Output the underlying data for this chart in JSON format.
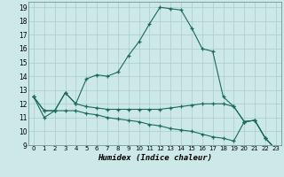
{
  "bg_color": "#cce8e8",
  "grid_color": "#aacccc",
  "line_color": "#1a6b5a",
  "xlabel": "Humidex (Indice chaleur)",
  "xlim": [
    -0.5,
    23.5
  ],
  "ylim": [
    9,
    19.4
  ],
  "yticks": [
    9,
    10,
    11,
    12,
    13,
    14,
    15,
    16,
    17,
    18,
    19
  ],
  "xticks": [
    0,
    1,
    2,
    3,
    4,
    5,
    6,
    7,
    8,
    9,
    10,
    11,
    12,
    13,
    14,
    15,
    16,
    17,
    18,
    19,
    20,
    21,
    22,
    23
  ],
  "series": [
    {
      "x": [
        0,
        1,
        2,
        3,
        4,
        5,
        6,
        7,
        8,
        9,
        10,
        11,
        12,
        13,
        14,
        15,
        16,
        17,
        18,
        19,
        20,
        21,
        22,
        23
      ],
      "y": [
        12.5,
        11.0,
        11.5,
        12.8,
        12.0,
        13.8,
        14.1,
        14.0,
        14.3,
        15.5,
        16.5,
        17.8,
        19.0,
        18.9,
        18.8,
        17.5,
        16.0,
        15.8,
        12.5,
        11.8,
        10.7,
        10.8,
        9.5,
        8.7
      ]
    },
    {
      "x": [
        0,
        1,
        2,
        3,
        4,
        5,
        6,
        7,
        8,
        9,
        10,
        11,
        12,
        13,
        14,
        15,
        16,
        17,
        18,
        19,
        20,
        21,
        22,
        23
      ],
      "y": [
        12.5,
        11.5,
        11.5,
        12.8,
        12.0,
        11.8,
        11.7,
        11.6,
        11.6,
        11.6,
        11.6,
        11.6,
        11.6,
        11.7,
        11.8,
        11.9,
        12.0,
        12.0,
        12.0,
        11.8,
        10.7,
        10.8,
        9.5,
        8.7
      ]
    },
    {
      "x": [
        0,
        1,
        2,
        3,
        4,
        5,
        6,
        7,
        8,
        9,
        10,
        11,
        12,
        13,
        14,
        15,
        16,
        17,
        18,
        19,
        20,
        21,
        22,
        23
      ],
      "y": [
        12.5,
        11.5,
        11.5,
        11.5,
        11.5,
        11.3,
        11.2,
        11.0,
        10.9,
        10.8,
        10.7,
        10.5,
        10.4,
        10.2,
        10.1,
        10.0,
        9.8,
        9.6,
        9.5,
        9.3,
        10.7,
        10.8,
        9.5,
        8.7
      ]
    }
  ]
}
